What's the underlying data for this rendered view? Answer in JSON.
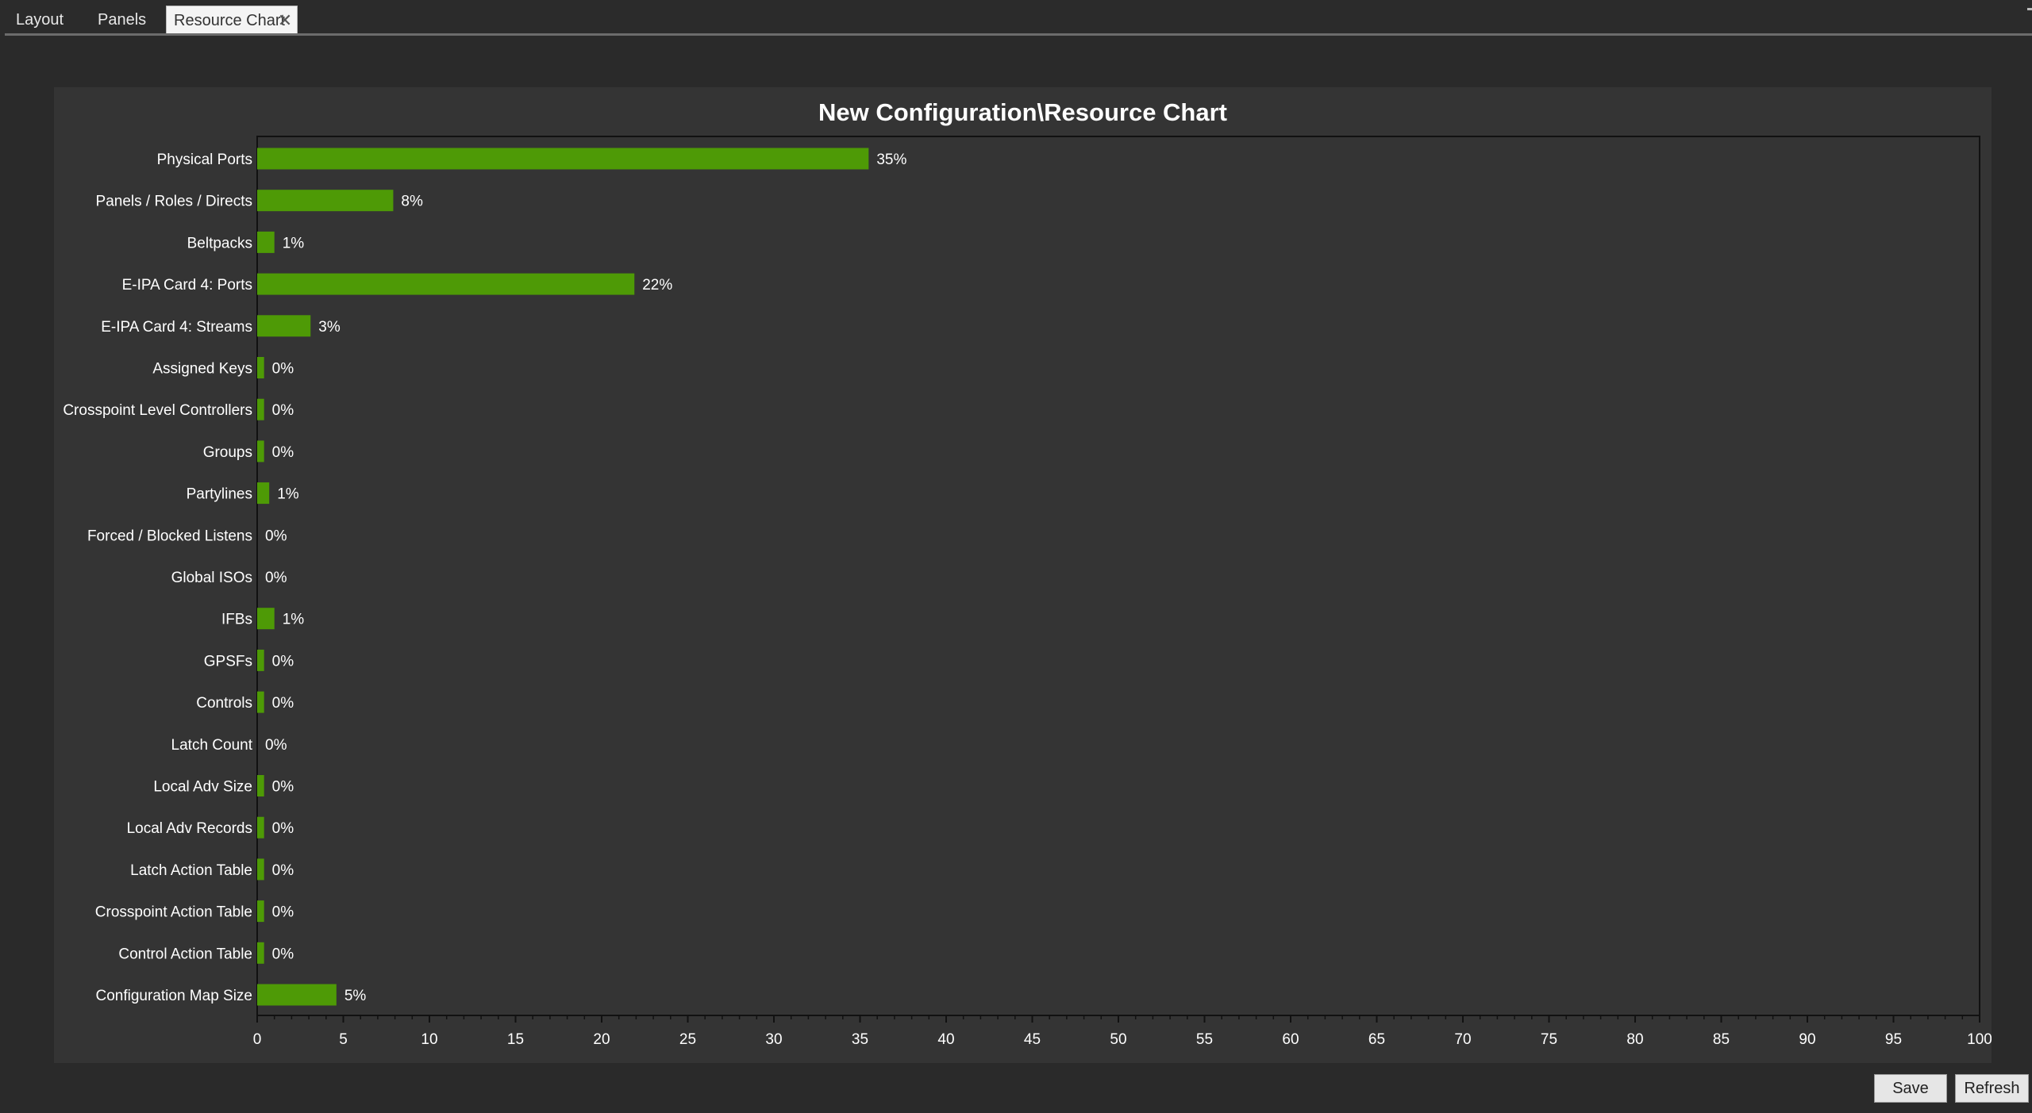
{
  "tabs": [
    {
      "label": "Layout"
    },
    {
      "label": "Panels"
    },
    {
      "label": "Resource Chart",
      "close_glyph": "✕"
    }
  ],
  "chart_data": {
    "type": "bar",
    "orientation": "horizontal",
    "title": "New Configuration\\Resource Chart",
    "xlabel": "",
    "ylabel": "",
    "xlim": [
      0,
      100
    ],
    "x_ticks": [
      0,
      5,
      10,
      15,
      20,
      25,
      30,
      35,
      40,
      45,
      50,
      55,
      60,
      65,
      70,
      75,
      80,
      85,
      90,
      95,
      100
    ],
    "categories": [
      "Physical Ports",
      "Panels / Roles / Directs",
      "Beltpacks",
      "E-IPA Card 4: Ports",
      "E-IPA Card 4: Streams",
      "Assigned Keys",
      "Crosspoint Level Controllers",
      "Groups",
      "Partylines",
      "Forced / Blocked Listens",
      "Global ISOs",
      "IFBs",
      "GPSFs",
      "Controls",
      "Latch Count",
      "Local Adv Size",
      "Local Adv Records",
      "Latch Action Table",
      "Crosspoint Action Table",
      "Control Action Table",
      "Configuration Map Size"
    ],
    "values": [
      35.5,
      7.9,
      1.0,
      21.9,
      3.1,
      0.4,
      0.4,
      0.4,
      0.7,
      0,
      0,
      1.0,
      0.4,
      0.4,
      0,
      0.4,
      0.4,
      0.4,
      0.4,
      0.4,
      4.6
    ],
    "labels": [
      "35%",
      "8%",
      "1%",
      "22%",
      "3%",
      "0%",
      "0%",
      "0%",
      "1%",
      "0%",
      "0%",
      "1%",
      "0%",
      "0%",
      "0%",
      "0%",
      "0%",
      "0%",
      "0%",
      "0%",
      "5%"
    ],
    "grid": false,
    "legend": "none",
    "bar_color": "#4e9a06"
  },
  "buttons": {
    "save_label": "Save",
    "refresh_label": "Refresh"
  }
}
